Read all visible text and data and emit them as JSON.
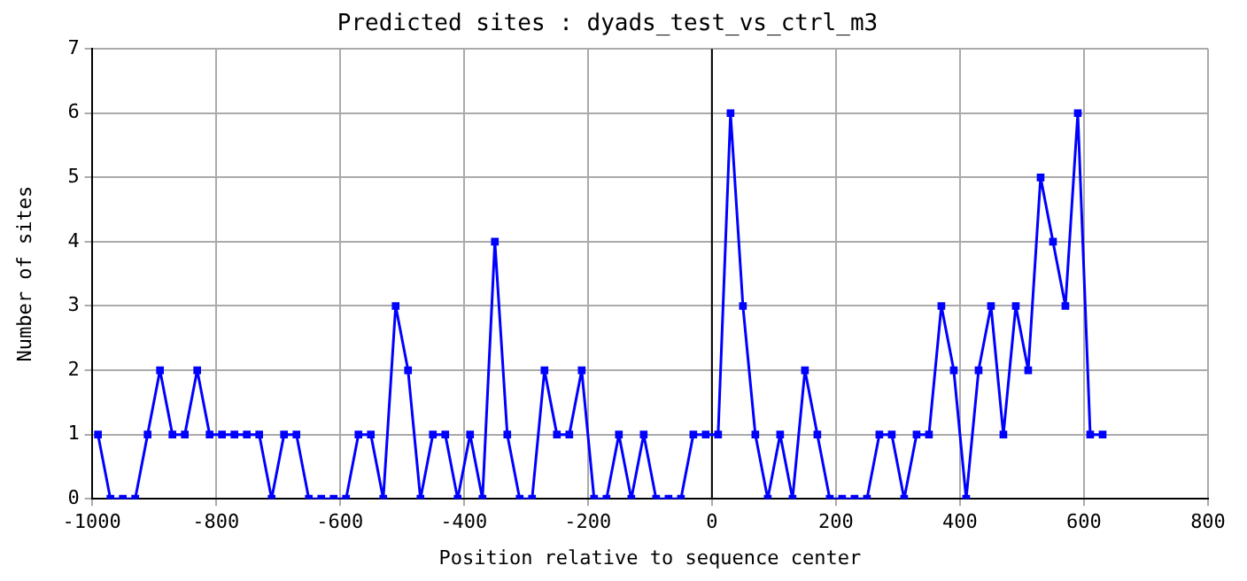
{
  "chart_data": {
    "type": "line",
    "title": "Predicted sites : dyads_test_vs_ctrl_m3",
    "xlabel": "Position relative to sequence center",
    "ylabel": "Number of sites",
    "x": [
      -990,
      -970,
      -950,
      -930,
      -910,
      -890,
      -870,
      -850,
      -830,
      -810,
      -790,
      -770,
      -750,
      -730,
      -710,
      -690,
      -670,
      -650,
      -630,
      -610,
      -590,
      -570,
      -550,
      -530,
      -510,
      -490,
      -470,
      -450,
      -430,
      -410,
      -390,
      -370,
      -350,
      -330,
      -310,
      -290,
      -270,
      -250,
      -230,
      -210,
      -190,
      -170,
      -150,
      -130,
      -110,
      -90,
      -70,
      -50,
      -30,
      -10,
      10,
      30,
      50,
      70,
      90,
      110,
      130,
      150,
      170,
      190,
      210,
      230,
      250,
      270,
      290,
      310,
      330,
      350,
      370,
      390,
      410,
      430,
      450,
      470,
      490,
      510,
      530,
      550,
      570,
      590,
      610,
      630
    ],
    "series": [
      {
        "color": "#0000ff",
        "values": [
          1,
          0,
          0,
          0,
          1,
          2,
          1,
          1,
          2,
          1,
          1,
          1,
          1,
          1,
          0,
          1,
          1,
          0,
          0,
          0,
          0,
          1,
          1,
          0,
          3,
          2,
          0,
          1,
          1,
          0,
          1,
          0,
          4,
          1,
          0,
          0,
          2,
          1,
          1,
          2,
          0,
          0,
          1,
          0,
          1,
          0,
          0,
          0,
          1,
          1,
          1,
          6,
          3,
          1,
          0,
          1,
          0,
          2,
          1,
          0,
          0,
          0,
          0,
          1,
          1,
          0,
          1,
          1,
          3,
          2,
          0,
          2,
          3,
          1,
          3,
          2,
          5,
          4,
          3,
          6,
          1,
          1
        ]
      }
    ],
    "xlim": [
      -1000,
      800
    ],
    "xticks": [
      -1000,
      -800,
      -600,
      -400,
      -200,
      0,
      200,
      400,
      600,
      800
    ],
    "ylim": [
      0,
      7
    ],
    "yticks": [
      0,
      1,
      2,
      3,
      4,
      5,
      6,
      7
    ],
    "ref_lines": [
      {
        "axis": "x",
        "value": 0,
        "color": "#000000"
      }
    ],
    "grid": true,
    "legend": false,
    "marker": "square",
    "line_style": "solid"
  }
}
